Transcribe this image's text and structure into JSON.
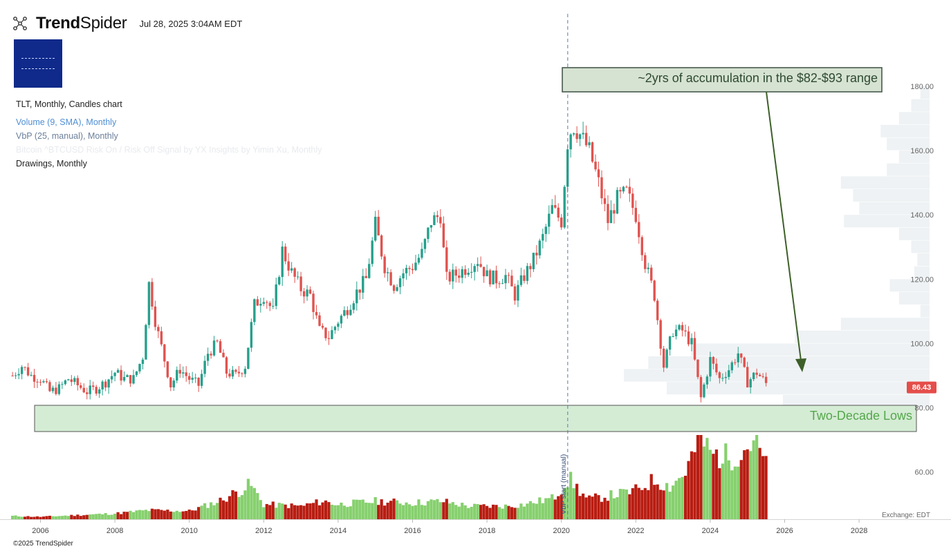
{
  "header": {
    "brand_bold": "Trend",
    "brand_light": "Spider",
    "timestamp": "Jul 28, 2025 3:04AM EDT"
  },
  "legend": {
    "main": "TLT, Monthly, Candles chart",
    "volume": "Volume (9, SMA), Monthly",
    "vbp": "VbP (25, manual), Monthly",
    "indicator": "Bitcoin ^BTCUSD Risk On / Risk Off Signal by YX Insights by Yimin Xu, Monthly",
    "drawings": "Drawings, Monthly"
  },
  "colors": {
    "up": "#26a08c",
    "down": "#e0534f",
    "vol_up": "#86d06e",
    "vol_down": "#b81d12",
    "vbp": "#eef2f4",
    "range_box_fill": "#d6e2d2",
    "range_box_stroke": "#3c4f42",
    "range_text": "#2d4a30",
    "lows_fill": "#d4ecd4",
    "lows_text": "#55a64c",
    "arrow": "#3d5f28",
    "price_badge": "#e54d4a",
    "vline": "#5a78a8"
  },
  "annotations": {
    "range_text": "~2yrs of accumulation in the $82-$93 range",
    "lows_text": "Two-Decade Lows",
    "vbp_marker": "VbP start (manual)"
  },
  "footer": {
    "copyright": "©2025 TrendSpider",
    "exchange": "Exchange: EDT"
  },
  "chart_data": {
    "type": "candlestick",
    "symbol": "TLT",
    "interval": "Monthly",
    "ylim": [
      52,
      190
    ],
    "yticks": [
      "180.00",
      "160.00",
      "140.00",
      "120.00",
      "100.00",
      "80.00",
      "60.00"
    ],
    "xticks": [
      "2006",
      "2008",
      "2010",
      "2012",
      "2014",
      "2016",
      "2018",
      "2020",
      "2022",
      "2024",
      "2026",
      "2028"
    ],
    "x_range": [
      2005.25,
      2029.5
    ],
    "last_price": "86.43",
    "vbp_start": 2020.17,
    "closes": [
      [
        2005.25,
        90
      ],
      [
        2005.5,
        93
      ],
      [
        2005.75,
        90
      ],
      [
        2006.0,
        89
      ],
      [
        2006.25,
        85
      ],
      [
        2006.5,
        86
      ],
      [
        2006.75,
        89
      ],
      [
        2007.0,
        87
      ],
      [
        2007.25,
        85
      ],
      [
        2007.5,
        86
      ],
      [
        2007.75,
        88
      ],
      [
        2008.0,
        91
      ],
      [
        2008.25,
        89
      ],
      [
        2008.5,
        89
      ],
      [
        2008.75,
        96
      ],
      [
        2008.92,
        119
      ],
      [
        2009.1,
        106
      ],
      [
        2009.5,
        87
      ],
      [
        2009.75,
        92
      ],
      [
        2010.0,
        89
      ],
      [
        2010.25,
        87
      ],
      [
        2010.5,
        97
      ],
      [
        2010.75,
        100
      ],
      [
        2011.0,
        91
      ],
      [
        2011.25,
        90
      ],
      [
        2011.5,
        93
      ],
      [
        2011.75,
        112
      ],
      [
        2012.0,
        115
      ],
      [
        2012.25,
        110
      ],
      [
        2012.5,
        129
      ],
      [
        2012.75,
        122
      ],
      [
        2013.0,
        117
      ],
      [
        2013.25,
        115
      ],
      [
        2013.5,
        104
      ],
      [
        2013.75,
        102
      ],
      [
        2014.0,
        107
      ],
      [
        2014.25,
        111
      ],
      [
        2014.5,
        116
      ],
      [
        2014.75,
        120
      ],
      [
        2015.0,
        137
      ],
      [
        2015.25,
        124
      ],
      [
        2015.5,
        118
      ],
      [
        2015.75,
        122
      ],
      [
        2016.0,
        124
      ],
      [
        2016.25,
        128
      ],
      [
        2016.5,
        138
      ],
      [
        2016.75,
        140
      ],
      [
        2016.9,
        120
      ],
      [
        2017.25,
        122
      ],
      [
        2017.5,
        124
      ],
      [
        2017.75,
        126
      ],
      [
        2018.0,
        121
      ],
      [
        2018.25,
        120
      ],
      [
        2018.5,
        121
      ],
      [
        2018.75,
        115
      ],
      [
        2019.0,
        121
      ],
      [
        2019.25,
        126
      ],
      [
        2019.5,
        133
      ],
      [
        2019.75,
        142
      ],
      [
        2020.0,
        138
      ],
      [
        2020.17,
        163
      ],
      [
        2020.3,
        168
      ],
      [
        2020.5,
        165
      ],
      [
        2020.75,
        160
      ],
      [
        2021.0,
        150
      ],
      [
        2021.25,
        138
      ],
      [
        2021.5,
        145
      ],
      [
        2021.75,
        147
      ],
      [
        2022.0,
        140
      ],
      [
        2022.25,
        125
      ],
      [
        2022.5,
        115
      ],
      [
        2022.75,
        93
      ],
      [
        2023.0,
        104
      ],
      [
        2023.25,
        104
      ],
      [
        2023.5,
        100
      ],
      [
        2023.75,
        83
      ],
      [
        2024.0,
        95
      ],
      [
        2024.25,
        89
      ],
      [
        2024.5,
        92
      ],
      [
        2024.75,
        97
      ],
      [
        2025.0,
        88
      ],
      [
        2025.25,
        91
      ],
      [
        2025.58,
        86.43
      ]
    ],
    "volume": [
      [
        2005.25,
        0.04
      ],
      [
        2006.0,
        0.03
      ],
      [
        2007.0,
        0.05
      ],
      [
        2008.0,
        0.07
      ],
      [
        2008.9,
        0.11
      ],
      [
        2010.0,
        0.1
      ],
      [
        2010.8,
        0.22
      ],
      [
        2011.65,
        0.42
      ],
      [
        2012.0,
        0.18
      ],
      [
        2013.0,
        0.16
      ],
      [
        2013.6,
        0.22
      ],
      [
        2014.0,
        0.18
      ],
      [
        2015.0,
        0.22
      ],
      [
        2016.0,
        0.2
      ],
      [
        2016.8,
        0.22
      ],
      [
        2017.5,
        0.16
      ],
      [
        2018.5,
        0.16
      ],
      [
        2019.0,
        0.18
      ],
      [
        2019.8,
        0.26
      ],
      [
        2020.2,
        0.5
      ],
      [
        2020.7,
        0.24
      ],
      [
        2021.2,
        0.28
      ],
      [
        2021.7,
        0.32
      ],
      [
        2022.0,
        0.35
      ],
      [
        2022.5,
        0.48
      ],
      [
        2022.9,
        0.4
      ],
      [
        2023.3,
        0.55
      ],
      [
        2023.75,
        1.0
      ],
      [
        2024.0,
        0.8
      ],
      [
        2024.5,
        0.75
      ],
      [
        2024.9,
        0.85
      ],
      [
        2025.2,
        0.98
      ],
      [
        2025.58,
        0.55
      ]
    ],
    "vbp": [
      [
        176,
        0.03
      ],
      [
        172,
        0.06
      ],
      [
        168,
        0.1
      ],
      [
        164,
        0.16
      ],
      [
        160,
        0.14
      ],
      [
        156,
        0.1
      ],
      [
        152,
        0.14
      ],
      [
        148,
        0.29
      ],
      [
        144,
        0.25
      ],
      [
        140,
        0.23
      ],
      [
        136,
        0.28
      ],
      [
        132,
        0.1
      ],
      [
        128,
        0.06
      ],
      [
        124,
        0.04
      ],
      [
        120,
        0.05
      ],
      [
        116,
        0.13
      ],
      [
        112,
        0.1
      ],
      [
        108,
        0.03
      ],
      [
        104,
        0.29
      ],
      [
        100,
        0.44
      ],
      [
        96,
        0.78
      ],
      [
        92,
        0.92
      ],
      [
        88,
        1.0
      ],
      [
        84,
        0.86
      ],
      [
        80,
        0.48
      ]
    ]
  }
}
